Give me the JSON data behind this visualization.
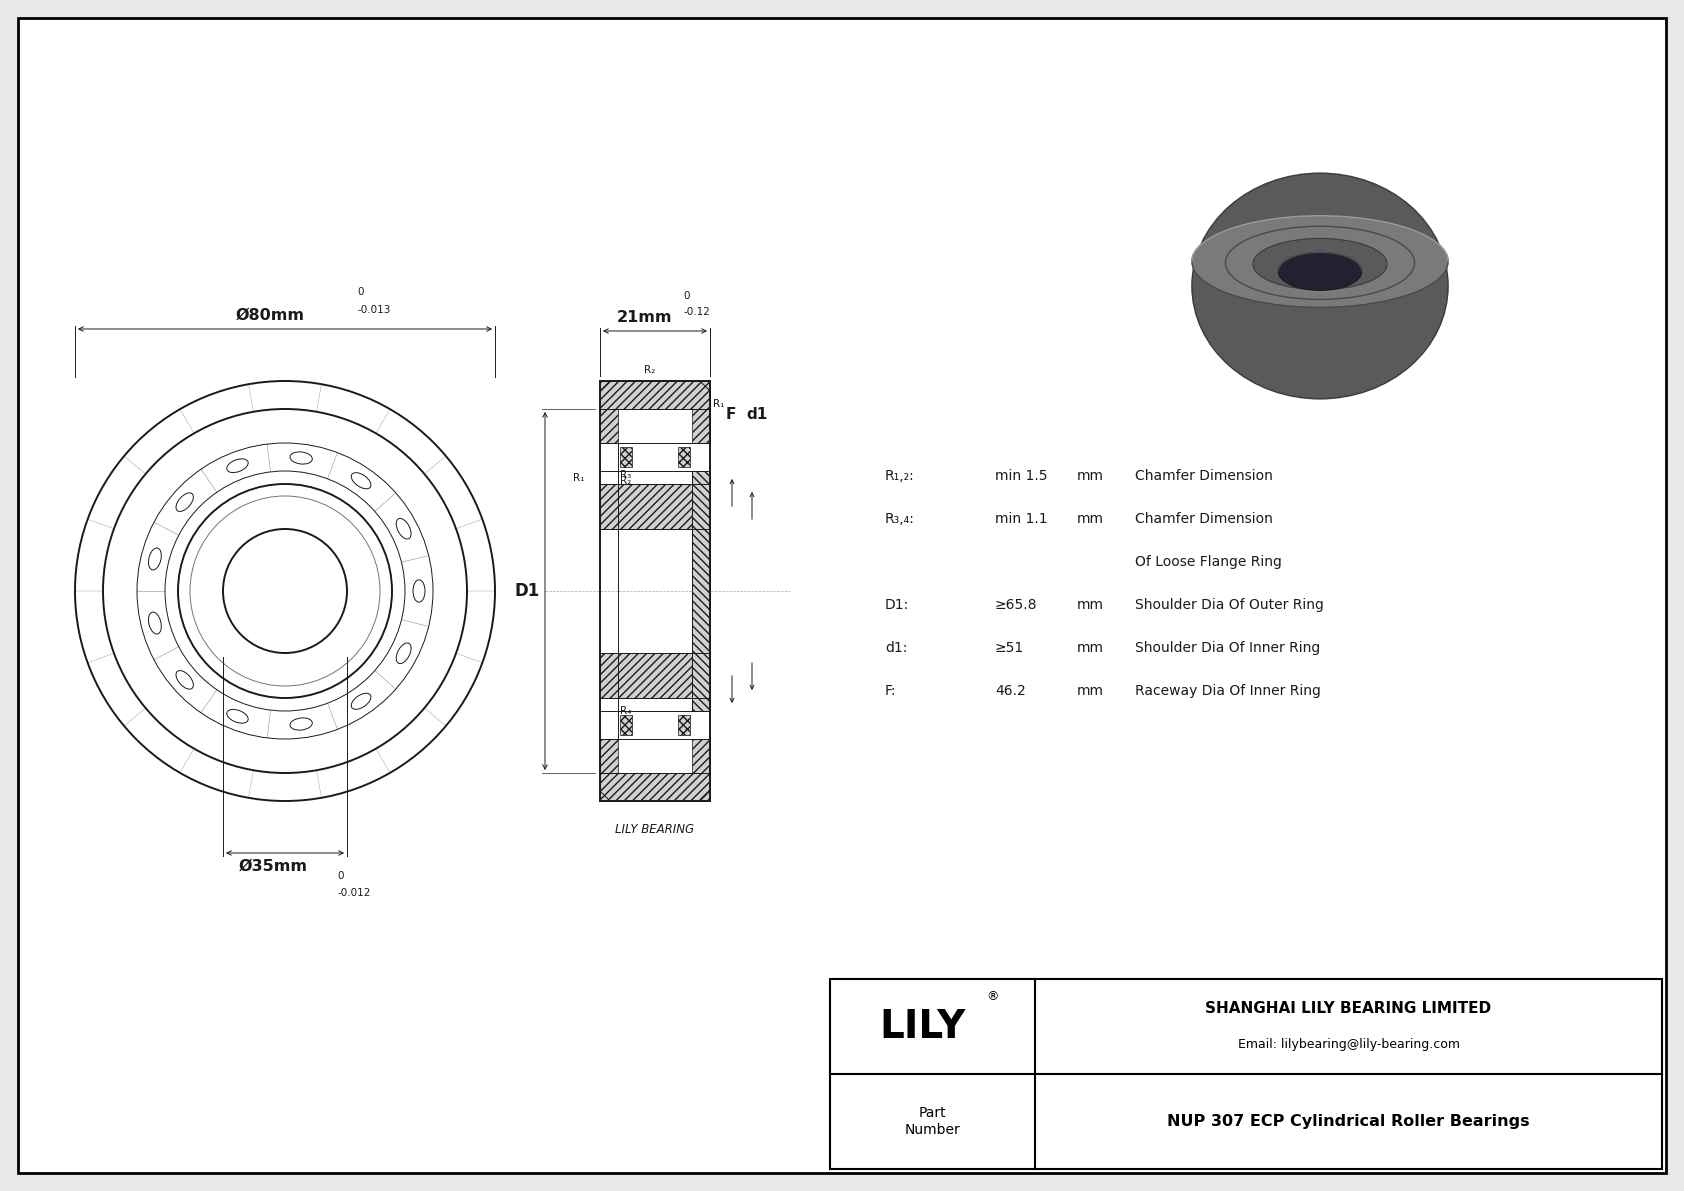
{
  "bg_color": "#e8e8e8",
  "drawing_bg": "#ffffff",
  "border_color": "#000000",
  "title": "NUP 307 ECP Cylindrical Roller Bearings",
  "company": "SHANGHAI LILY BEARING LIMITED",
  "email": "Email: lilybearing@lily-bearing.com",
  "part_label": "Part\nNumber",
  "lily_label": "LILY",
  "lily_registered": "®",
  "watermark": "LILY BEARING",
  "dim_outer": "Ø80mm",
  "dim_outer_tol": "-0.013",
  "dim_outer_tol_upper": "0",
  "dim_width": "21mm",
  "dim_width_tol": "-0.12",
  "dim_width_tol_upper": "0",
  "dim_inner": "Ø35mm",
  "dim_inner_tol": "-0.012",
  "dim_inner_tol_upper": "0"
}
